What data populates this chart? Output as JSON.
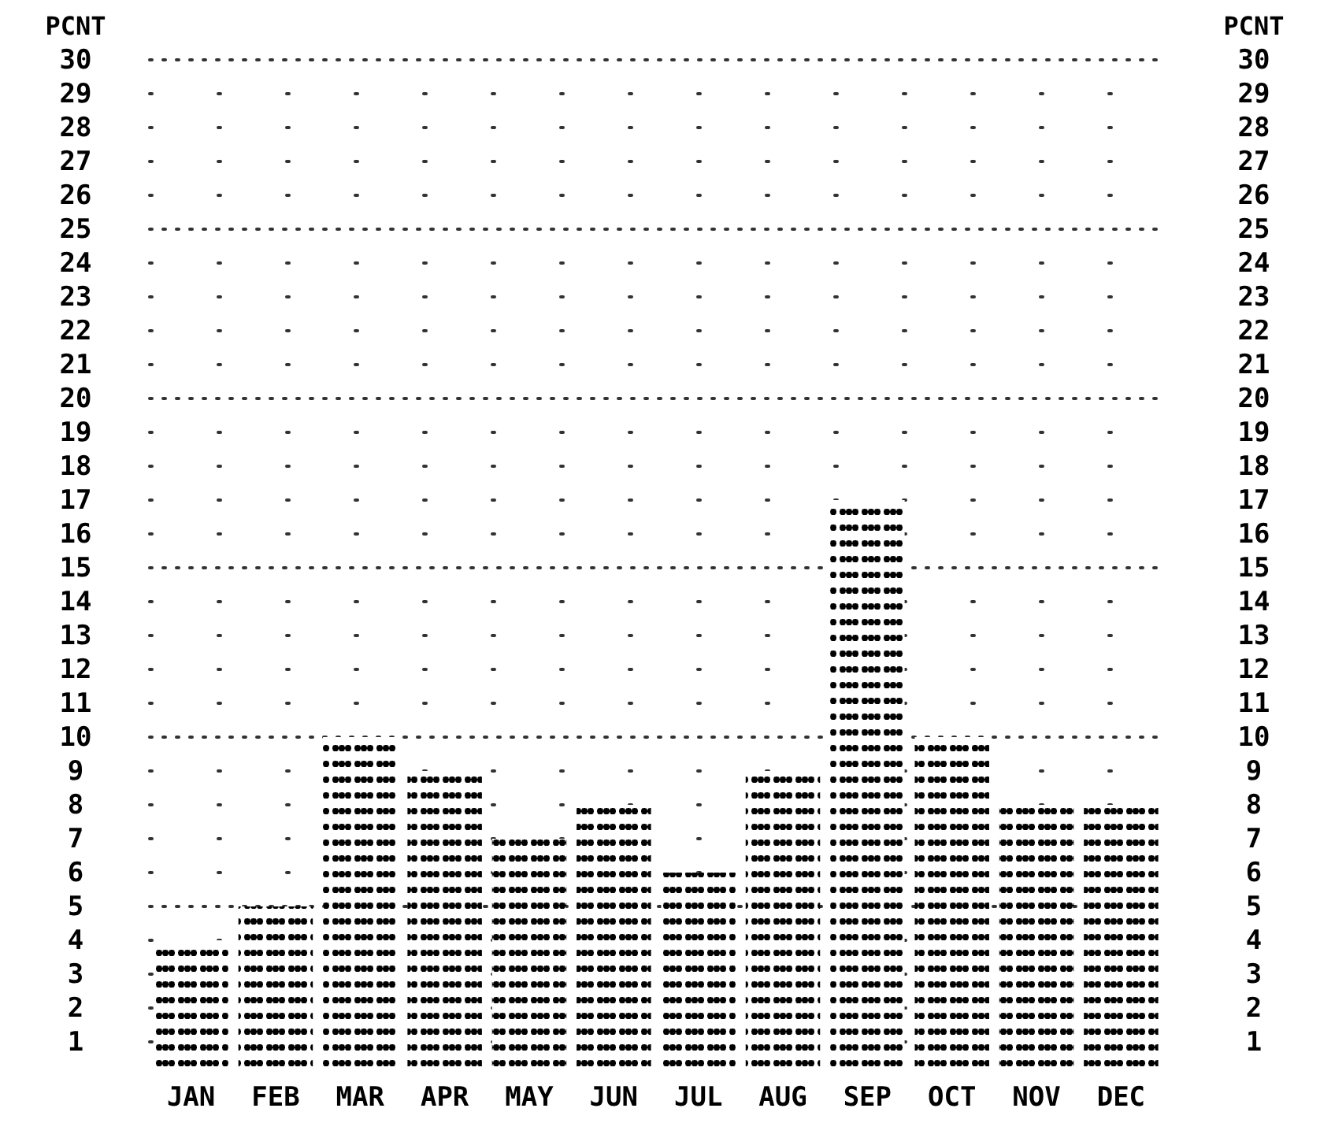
{
  "chart_data": {
    "type": "bar",
    "categories": [
      "JAN",
      "FEB",
      "MAR",
      "APR",
      "MAY",
      "JUN",
      "JUL",
      "AUG",
      "SEP",
      "OCT",
      "NOV",
      "DEC"
    ],
    "values": [
      4,
      5,
      10,
      9,
      7,
      8,
      6,
      9,
      17,
      10,
      8,
      8
    ],
    "color": "#000000",
    "ylabel": "PCNT",
    "y2label": "PCNT",
    "ylim": [
      0,
      30
    ],
    "yticks": [
      1,
      2,
      3,
      4,
      5,
      6,
      7,
      8,
      9,
      10,
      11,
      12,
      13,
      14,
      15,
      16,
      17,
      18,
      19,
      20,
      21,
      22,
      23,
      24,
      25,
      26,
      27,
      28,
      29,
      30
    ],
    "y2lim": [
      0,
      30
    ],
    "y2ticks": [
      1,
      2,
      3,
      4,
      5,
      6,
      7,
      8,
      9,
      10,
      11,
      12,
      13,
      14,
      15,
      16,
      17,
      18,
      19,
      20,
      21,
      22,
      23,
      24,
      25,
      26,
      27,
      28,
      29,
      30
    ],
    "grid": true
  }
}
